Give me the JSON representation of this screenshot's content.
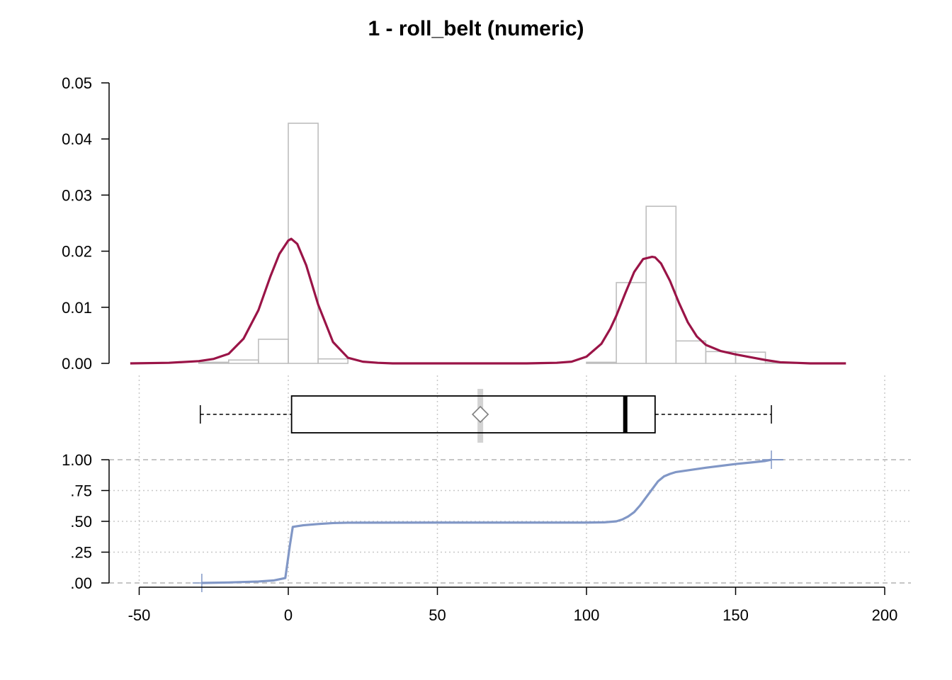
{
  "chart_data": [
    {
      "type": "bar",
      "panel": "density",
      "title": "1 - roll_belt (numeric)",
      "xlim": [
        -55,
        190
      ],
      "ylim": [
        0,
        0.05
      ],
      "yticks": [
        0.0,
        0.01,
        0.02,
        0.03,
        0.04,
        0.05
      ],
      "ytick_labels": [
        "0.00",
        "0.01",
        "0.02",
        "0.03",
        "0.04",
        "0.05"
      ],
      "histogram": {
        "bin_width": 10,
        "bins": [
          {
            "x0": -30,
            "x1": -20,
            "density": 0.0002
          },
          {
            "x0": -20,
            "x1": -10,
            "density": 0.0006
          },
          {
            "x0": -10,
            "x1": 0,
            "density": 0.0043
          },
          {
            "x0": 0,
            "x1": 10,
            "density": 0.0428
          },
          {
            "x0": 10,
            "x1": 20,
            "density": 0.0008
          },
          {
            "x0": 100,
            "x1": 110,
            "density": 0.0002
          },
          {
            "x0": 110,
            "x1": 120,
            "density": 0.0144
          },
          {
            "x0": 120,
            "x1": 130,
            "density": 0.028
          },
          {
            "x0": 130,
            "x1": 140,
            "density": 0.004
          },
          {
            "x0": 140,
            "x1": 150,
            "density": 0.0021
          },
          {
            "x0": 150,
            "x1": 160,
            "density": 0.002
          },
          {
            "x0": 160,
            "x1": 170,
            "density": 0.0001
          }
        ],
        "color": "#bebebe"
      },
      "density_curve": {
        "color": "#9a1447",
        "x": [
          -53,
          -40,
          -30,
          -25,
          -20,
          -15,
          -10,
          -6,
          -3,
          0,
          1,
          3,
          6,
          10,
          15,
          20,
          25,
          30,
          35,
          50,
          80,
          90,
          95,
          100,
          105,
          108,
          110,
          113,
          116,
          119,
          122,
          123,
          125,
          128,
          131,
          134,
          137,
          140,
          145,
          150,
          155,
          160,
          165,
          170,
          175,
          180,
          187
        ],
        "y": [
          0,
          0.0001,
          0.0004,
          0.0008,
          0.0017,
          0.0044,
          0.0095,
          0.0155,
          0.0195,
          0.0219,
          0.0222,
          0.0213,
          0.0175,
          0.0105,
          0.0038,
          0.001,
          0.0003,
          0.0001,
          0,
          0,
          0,
          0.0001,
          0.0003,
          0.0012,
          0.0035,
          0.0062,
          0.0085,
          0.0125,
          0.0163,
          0.0186,
          0.019,
          0.0189,
          0.0178,
          0.0147,
          0.0108,
          0.0073,
          0.0048,
          0.0033,
          0.0022,
          0.0016,
          0.0011,
          0.0006,
          0.0002,
          0.0001,
          0,
          0,
          0
        ]
      }
    },
    {
      "type": "boxplot",
      "panel": "boxplot",
      "whisker_low": -29.5,
      "q1": 1.1,
      "median": 113,
      "q3": 123,
      "whisker_high": 162,
      "mean": 64.4,
      "mean_ci": [
        64.2,
        64.6
      ],
      "color": "#000000"
    },
    {
      "type": "line",
      "panel": "ecdf",
      "xlim": [
        -55,
        190
      ],
      "ylim": [
        0,
        1
      ],
      "yticks": [
        0,
        0.25,
        0.5,
        0.75,
        1
      ],
      "ytick_labels": [
        ".00",
        ".25",
        ".50",
        ".75",
        "1.00"
      ],
      "xticks": [
        -50,
        0,
        50,
        100,
        150,
        200
      ],
      "xtick_labels": [
        "-50",
        "0",
        "50",
        "100",
        "150",
        "200"
      ],
      "grid": true,
      "color": "#8197c6",
      "x": [
        -29,
        -20,
        -10,
        -5,
        -1,
        0.5,
        1.5,
        5,
        10,
        15,
        20,
        50,
        80,
        100,
        106,
        110,
        112,
        114,
        116,
        118,
        120,
        122,
        124,
        126,
        128,
        130,
        140,
        150,
        155,
        160,
        162
      ],
      "y": [
        0,
        0.004,
        0.012,
        0.02,
        0.04,
        0.3,
        0.455,
        0.468,
        0.478,
        0.486,
        0.489,
        0.49,
        0.49,
        0.49,
        0.492,
        0.5,
        0.515,
        0.54,
        0.575,
        0.63,
        0.695,
        0.76,
        0.825,
        0.865,
        0.885,
        0.9,
        0.935,
        0.965,
        0.977,
        0.99,
        1.0
      ]
    }
  ]
}
